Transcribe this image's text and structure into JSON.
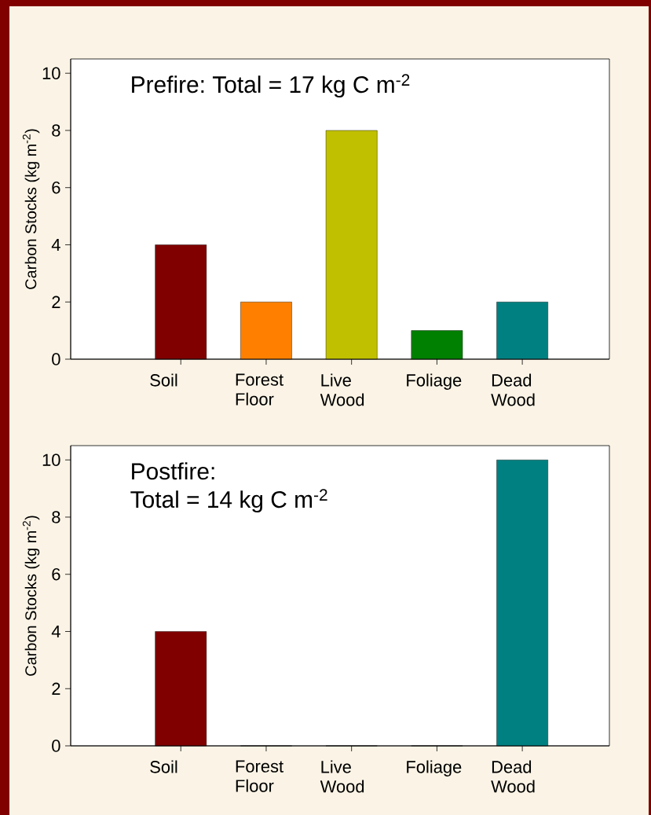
{
  "chart_data": [
    {
      "type": "bar",
      "title": "Prefire: Total = 17 kg C m$^{-2}$",
      "ylabel": "Carbon Stocks (kg m$^{-2}$)",
      "categories": [
        "Soil",
        "Forest Floor",
        "Live Wood",
        "Foliage",
        "Dead Wood"
      ],
      "values": [
        4,
        2,
        8,
        1,
        2
      ],
      "colors": [
        "#800000",
        "#ff8000",
        "#c0c000",
        "#008000",
        "#008080"
      ],
      "ylim": [
        0,
        10.5
      ],
      "yticks": [
        0,
        2,
        4,
        6,
        8,
        10
      ]
    },
    {
      "type": "bar",
      "title": "Postfire:",
      "subtitle": "Total = 14 kg C m$^{-2}$",
      "ylabel": "Carbon Stocks (kg m$^{-2}$)",
      "categories": [
        "Soil",
        "Forest Floor",
        "Live Wood",
        "Foliage",
        "Dead Wood"
      ],
      "values": [
        4,
        0,
        0,
        0,
        10
      ],
      "colors": [
        "#800000",
        "#ff8000",
        "#c0c000",
        "#008000",
        "#008080"
      ],
      "ylim": [
        0,
        10.5
      ],
      "yticks": [
        0,
        2,
        4,
        6,
        8,
        10
      ]
    }
  ]
}
